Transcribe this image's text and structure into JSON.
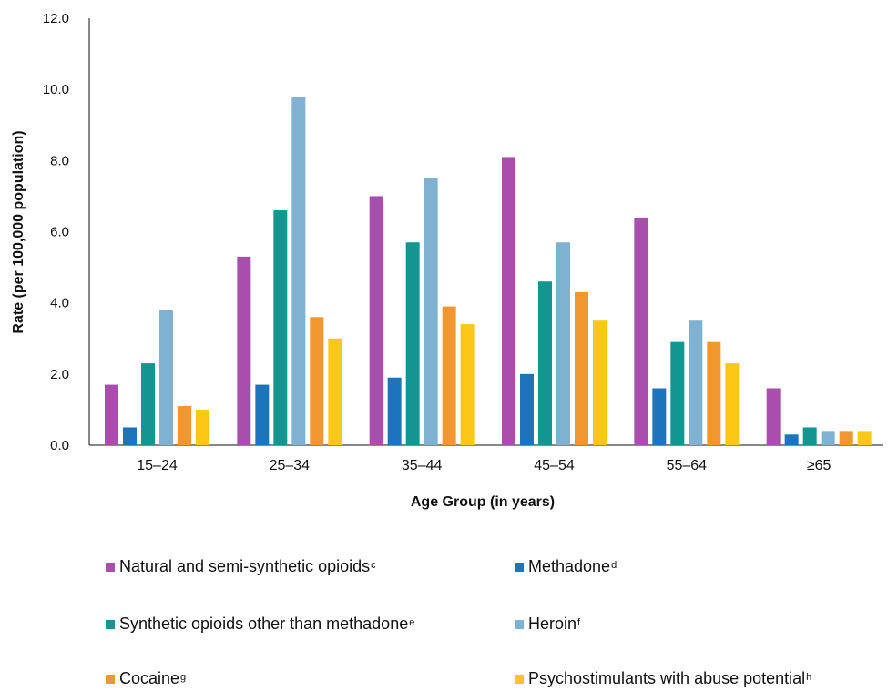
{
  "chart_data": {
    "type": "bar",
    "title": "",
    "xlabel": "Age Group (in years)",
    "ylabel": "Rate (per 100,000 population)",
    "ylim": [
      0,
      12
    ],
    "yticks": [
      "0.0",
      "2.0",
      "4.0",
      "6.0",
      "8.0",
      "10.0",
      "12.0"
    ],
    "categories": [
      "15–24",
      "25–34",
      "35–44",
      "45–54",
      "55–64",
      "≥65"
    ],
    "legend_placement": "bottom",
    "grid": false,
    "series": [
      {
        "name": "Natural and semi-synthetic opioids",
        "sup": "c",
        "color": "#a84fad",
        "values": [
          1.7,
          5.3,
          7.0,
          8.1,
          6.4,
          1.6
        ]
      },
      {
        "name": "Methadone",
        "sup": "d",
        "color": "#1c75bc",
        "values": [
          0.5,
          1.7,
          1.9,
          2.0,
          1.6,
          0.3
        ]
      },
      {
        "name": "Synthetic opioids other than methadone",
        "sup": "e",
        "color": "#13968f",
        "values": [
          2.3,
          6.6,
          5.7,
          4.6,
          2.9,
          0.5
        ]
      },
      {
        "name": "Heroin",
        "sup": "f",
        "color": "#7fb2d1",
        "values": [
          3.8,
          9.8,
          7.5,
          5.7,
          3.5,
          0.4
        ]
      },
      {
        "name": "Cocaine",
        "sup": "g",
        "color": "#f0982f",
        "values": [
          1.1,
          3.6,
          3.9,
          4.3,
          2.9,
          0.4
        ]
      },
      {
        "name": "Psychostimulants with abuse potential",
        "sup": "h",
        "color": "#fcc817",
        "values": [
          1.0,
          3.0,
          3.4,
          3.5,
          2.3,
          0.4
        ]
      }
    ]
  }
}
